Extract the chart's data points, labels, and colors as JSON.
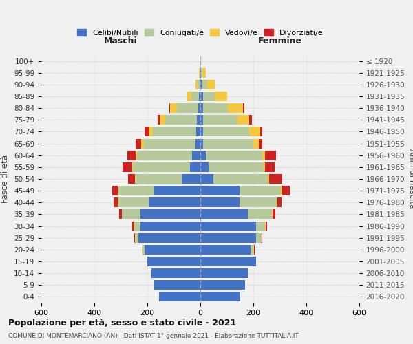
{
  "age_groups": [
    "0-4",
    "5-9",
    "10-14",
    "15-19",
    "20-24",
    "25-29",
    "30-34",
    "35-39",
    "40-44",
    "45-49",
    "50-54",
    "55-59",
    "60-64",
    "65-69",
    "70-74",
    "75-79",
    "80-84",
    "85-89",
    "90-94",
    "95-99",
    "100+"
  ],
  "birth_years": [
    "2016-2020",
    "2011-2015",
    "2006-2010",
    "2001-2005",
    "1996-2000",
    "1991-1995",
    "1986-1990",
    "1981-1985",
    "1976-1980",
    "1971-1975",
    "1966-1970",
    "1961-1965",
    "1956-1960",
    "1951-1955",
    "1946-1950",
    "1941-1945",
    "1936-1940",
    "1931-1935",
    "1926-1930",
    "1921-1925",
    "≤ 1920"
  ],
  "colors": {
    "celibi": "#4472c4",
    "coniugati": "#b5c99a",
    "vedovi": "#f5c842",
    "divorziati": "#cc2222"
  },
  "maschi": {
    "celibi": [
      155,
      175,
      185,
      200,
      210,
      235,
      225,
      225,
      195,
      175,
      70,
      40,
      30,
      18,
      15,
      12,
      8,
      4,
      2,
      0,
      0
    ],
    "coniugati": [
      0,
      0,
      0,
      0,
      5,
      10,
      25,
      70,
      115,
      135,
      175,
      215,
      210,
      195,
      165,
      120,
      80,
      30,
      8,
      2,
      0
    ],
    "vedovi": [
      0,
      0,
      0,
      0,
      2,
      2,
      2,
      2,
      2,
      2,
      2,
      3,
      5,
      10,
      15,
      20,
      25,
      15,
      8,
      2,
      0
    ],
    "divorziati": [
      0,
      0,
      0,
      0,
      2,
      2,
      5,
      10,
      15,
      20,
      25,
      35,
      30,
      20,
      15,
      10,
      5,
      0,
      0,
      0,
      0
    ]
  },
  "femmine": {
    "celibi": [
      150,
      170,
      180,
      210,
      190,
      210,
      210,
      180,
      148,
      148,
      50,
      30,
      20,
      10,
      10,
      10,
      10,
      10,
      5,
      2,
      0
    ],
    "coniugati": [
      0,
      0,
      0,
      0,
      10,
      20,
      35,
      90,
      140,
      155,
      205,
      210,
      215,
      190,
      175,
      130,
      95,
      45,
      20,
      5,
      0
    ],
    "vedovi": [
      0,
      0,
      0,
      0,
      2,
      2,
      2,
      2,
      3,
      5,
      5,
      5,
      10,
      20,
      40,
      45,
      55,
      45,
      30,
      15,
      2
    ],
    "divorziati": [
      0,
      0,
      0,
      0,
      2,
      2,
      5,
      10,
      15,
      30,
      50,
      35,
      40,
      15,
      10,
      10,
      5,
      0,
      0,
      0,
      0
    ]
  },
  "title": "Popolazione per età, sesso e stato civile - 2021",
  "subtitle": "COMUNE DI MONTEMARCIANO (AN) - Dati ISTAT 1° gennaio 2021 - Elaborazione TUTTITALIA.IT",
  "xlabel_left": "Maschi",
  "xlabel_right": "Femmine",
  "ylabel_left": "Fasce di età",
  "ylabel_right": "Anni di nascita",
  "xlim": 600,
  "legend_labels": [
    "Celibi/Nubili",
    "Coniugati/e",
    "Vedovi/e",
    "Divorziati/e"
  ],
  "bg_color": "#f0f0f0"
}
